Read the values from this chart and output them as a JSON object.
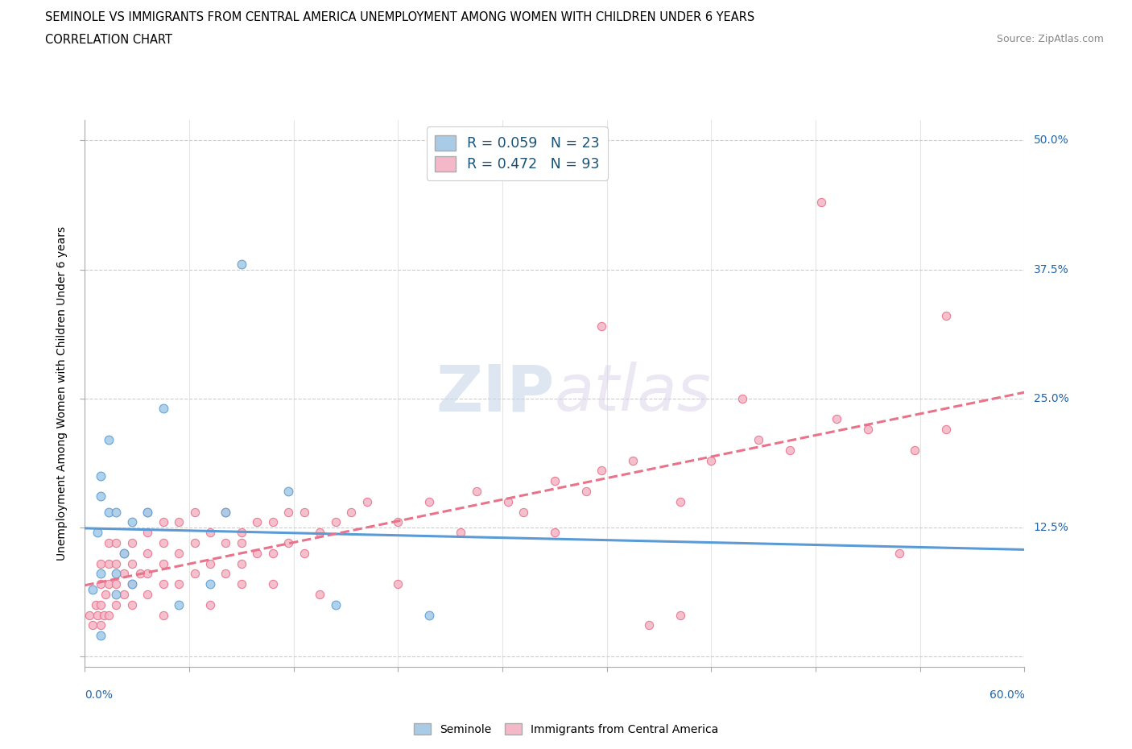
{
  "title_line1": "SEMINOLE VS IMMIGRANTS FROM CENTRAL AMERICA UNEMPLOYMENT AMONG WOMEN WITH CHILDREN UNDER 6 YEARS",
  "title_line2": "CORRELATION CHART",
  "source": "Source: ZipAtlas.com",
  "ylabel": "Unemployment Among Women with Children Under 6 years",
  "xmin": 0.0,
  "xmax": 0.6,
  "ymin": -0.01,
  "ymax": 0.52,
  "ytick_values": [
    0.0,
    0.125,
    0.25,
    0.375,
    0.5
  ],
  "ytick_labels": [
    "",
    "12.5%",
    "25.0%",
    "37.5%",
    "50.0%"
  ],
  "blue_color": "#a8cce8",
  "pink_color": "#f4b8c8",
  "blue_line_color": "#5b9bd5",
  "pink_line_color": "#e8738a",
  "blue_fill": "#b8d4ea",
  "pink_fill": "#f9cdd8",
  "legend_text_color": "#2166ac",
  "watermark_color": "#d0dff0",
  "watermark_text": "ZIPAtlas",
  "seminole_x": [
    0.005,
    0.008,
    0.01,
    0.01,
    0.01,
    0.01,
    0.015,
    0.015,
    0.02,
    0.02,
    0.02,
    0.025,
    0.03,
    0.03,
    0.04,
    0.05,
    0.06,
    0.08,
    0.09,
    0.1,
    0.13,
    0.16,
    0.22
  ],
  "seminole_y": [
    0.065,
    0.12,
    0.155,
    0.175,
    0.02,
    0.08,
    0.14,
    0.21,
    0.06,
    0.08,
    0.14,
    0.1,
    0.07,
    0.13,
    0.14,
    0.24,
    0.05,
    0.07,
    0.14,
    0.38,
    0.16,
    0.05,
    0.04
  ],
  "immigrants_x": [
    0.003,
    0.005,
    0.007,
    0.008,
    0.01,
    0.01,
    0.01,
    0.01,
    0.012,
    0.013,
    0.015,
    0.015,
    0.015,
    0.015,
    0.02,
    0.02,
    0.02,
    0.02,
    0.025,
    0.025,
    0.025,
    0.03,
    0.03,
    0.03,
    0.03,
    0.035,
    0.04,
    0.04,
    0.04,
    0.04,
    0.04,
    0.05,
    0.05,
    0.05,
    0.05,
    0.05,
    0.06,
    0.06,
    0.06,
    0.07,
    0.07,
    0.07,
    0.08,
    0.08,
    0.08,
    0.09,
    0.09,
    0.09,
    0.1,
    0.1,
    0.1,
    0.1,
    0.11,
    0.11,
    0.12,
    0.12,
    0.12,
    0.13,
    0.13,
    0.14,
    0.14,
    0.15,
    0.15,
    0.16,
    0.17,
    0.18,
    0.2,
    0.2,
    0.22,
    0.24,
    0.25,
    0.27,
    0.28,
    0.3,
    0.32,
    0.33,
    0.35,
    0.36,
    0.38,
    0.4,
    0.43,
    0.45,
    0.47,
    0.5,
    0.52,
    0.53,
    0.55,
    0.33,
    0.38,
    0.42,
    0.3,
    0.48,
    0.55
  ],
  "immigrants_y": [
    0.04,
    0.03,
    0.05,
    0.04,
    0.03,
    0.05,
    0.07,
    0.09,
    0.04,
    0.06,
    0.04,
    0.07,
    0.09,
    0.11,
    0.05,
    0.07,
    0.09,
    0.11,
    0.06,
    0.08,
    0.1,
    0.05,
    0.07,
    0.09,
    0.11,
    0.08,
    0.06,
    0.08,
    0.1,
    0.12,
    0.14,
    0.07,
    0.09,
    0.11,
    0.13,
    0.04,
    0.07,
    0.1,
    0.13,
    0.08,
    0.11,
    0.14,
    0.09,
    0.12,
    0.05,
    0.08,
    0.11,
    0.14,
    0.09,
    0.12,
    0.07,
    0.11,
    0.1,
    0.13,
    0.1,
    0.13,
    0.07,
    0.11,
    0.14,
    0.1,
    0.14,
    0.12,
    0.06,
    0.13,
    0.14,
    0.15,
    0.13,
    0.07,
    0.15,
    0.12,
    0.16,
    0.15,
    0.14,
    0.17,
    0.16,
    0.18,
    0.19,
    0.03,
    0.15,
    0.19,
    0.21,
    0.2,
    0.44,
    0.22,
    0.1,
    0.2,
    0.22,
    0.32,
    0.04,
    0.25,
    0.12,
    0.23,
    0.33
  ]
}
